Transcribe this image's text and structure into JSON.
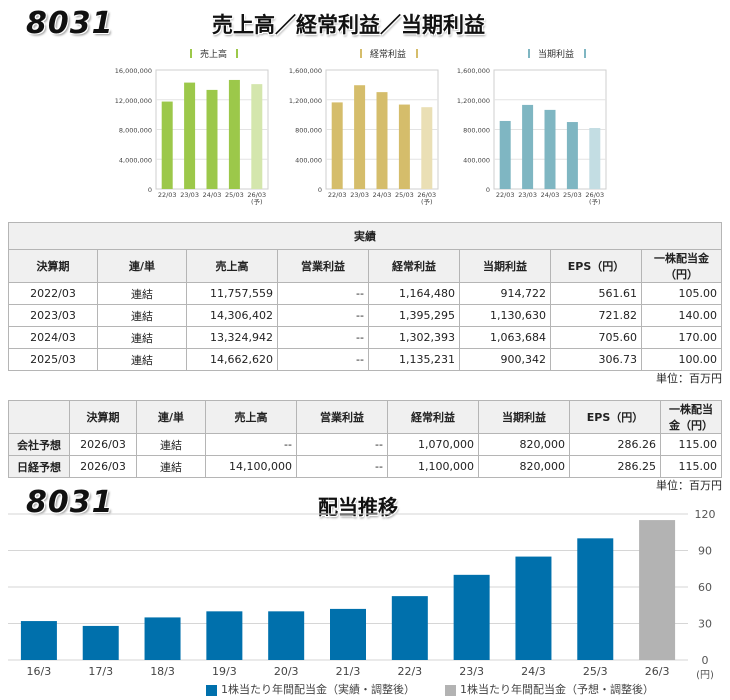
{
  "code": "8031",
  "headline": "売上高／経常利益／当期利益",
  "mini_charts": [
    {
      "legend": "売上高",
      "color": "#9cc84a",
      "forecast_color": "#d4e6ad",
      "y_ticks": [
        "16,000,000",
        "12,000,000",
        "8,000,000",
        "4,000,000",
        "0"
      ],
      "ylim": [
        0,
        16000000
      ],
      "categories": [
        "22/03",
        "23/03",
        "24/03",
        "25/03",
        "26/03"
      ],
      "forecast_note": "(予)",
      "values": [
        11757559,
        14306402,
        13324942,
        14662620,
        14100000
      ]
    },
    {
      "legend": "経常利益",
      "color": "#d5bd6b",
      "forecast_color": "#eadfb5",
      "y_ticks": [
        "1,600,000",
        "1,200,000",
        "800,000",
        "400,000",
        "0"
      ],
      "ylim": [
        0,
        1600000
      ],
      "categories": [
        "22/03",
        "23/03",
        "24/03",
        "25/03",
        "26/03"
      ],
      "forecast_note": "(予)",
      "values": [
        1164480,
        1395295,
        1302393,
        1135231,
        1100000
      ]
    },
    {
      "legend": "当期利益",
      "color": "#7fb6c2",
      "forecast_color": "#c3dde3",
      "y_ticks": [
        "1,600,000",
        "1,200,000",
        "800,000",
        "400,000",
        "0"
      ],
      "ylim": [
        0,
        1600000
      ],
      "categories": [
        "22/03",
        "23/03",
        "24/03",
        "25/03",
        "26/03"
      ],
      "forecast_note": "(予)",
      "values": [
        914722,
        1130630,
        1063684,
        900342,
        820000
      ]
    }
  ],
  "results_table": {
    "caption": "実績",
    "headers": [
      "決算期",
      "連/単",
      "売上高",
      "営業利益",
      "経常利益",
      "当期利益",
      "EPS（円）",
      "一株配当金（円）"
    ],
    "rows": [
      [
        "2022/03",
        "連結",
        "11,757,559",
        "--",
        "1,164,480",
        "914,722",
        "561.61",
        "105.00"
      ],
      [
        "2023/03",
        "連結",
        "14,306,402",
        "--",
        "1,395,295",
        "1,130,630",
        "721.82",
        "140.00"
      ],
      [
        "2024/03",
        "連結",
        "13,324,942",
        "--",
        "1,302,393",
        "1,063,684",
        "705.60",
        "170.00"
      ],
      [
        "2025/03",
        "連結",
        "14,662,620",
        "--",
        "1,135,231",
        "900,342",
        "306.73",
        "100.00"
      ]
    ],
    "unit": "単位：百万円"
  },
  "forecast_table": {
    "headers": [
      "",
      "決算期",
      "連/単",
      "売上高",
      "営業利益",
      "経常利益",
      "当期利益",
      "EPS（円）",
      "一株配当金（円）"
    ],
    "rows": [
      [
        "会社予想",
        "2026/03",
        "連結",
        "--",
        "--",
        "1,070,000",
        "820,000",
        "286.26",
        "115.00"
      ],
      [
        "日経予想",
        "2026/03",
        "連結",
        "14,100,000",
        "--",
        "1,100,000",
        "820,000",
        "286.25",
        "115.00"
      ]
    ],
    "unit": "単位：百万円"
  },
  "dividend": {
    "code": "8031",
    "title": "配当推移",
    "y_unit": "(円)",
    "legend_actual": "1株当たり年間配当金（実績・調整後）",
    "legend_forecast": "1株当たり年間配当金（予想・調整後）",
    "actual_color": "#0070ac",
    "forecast_color": "#b3b3b3"
  },
  "chart_data": [
    {
      "type": "bar",
      "series": [
        {
          "name": "売上高",
          "values": [
            11757559,
            14306402,
            13324942,
            14662620,
            14100000
          ]
        }
      ],
      "categories": [
        "22/03",
        "23/03",
        "24/03",
        "25/03",
        "26/03(予)"
      ],
      "ylim": [
        0,
        16000000
      ]
    },
    {
      "type": "bar",
      "series": [
        {
          "name": "経常利益",
          "values": [
            1164480,
            1395295,
            1302393,
            1135231,
            1100000
          ]
        }
      ],
      "categories": [
        "22/03",
        "23/03",
        "24/03",
        "25/03",
        "26/03(予)"
      ],
      "ylim": [
        0,
        1600000
      ]
    },
    {
      "type": "bar",
      "series": [
        {
          "name": "当期利益",
          "values": [
            914722,
            1130630,
            1063684,
            900342,
            820000
          ]
        }
      ],
      "categories": [
        "22/03",
        "23/03",
        "24/03",
        "25/03",
        "26/03(予)"
      ],
      "ylim": [
        0,
        1600000
      ]
    },
    {
      "type": "bar",
      "title": "配当推移",
      "ylabel": "(円)",
      "categories": [
        "16/3",
        "17/3",
        "18/3",
        "19/3",
        "20/3",
        "21/3",
        "22/3",
        "23/3",
        "24/3",
        "25/3",
        "26/3"
      ],
      "y_ticks": [
        "120",
        "90",
        "60",
        "30",
        "0"
      ],
      "ylim": [
        0,
        120
      ],
      "grid": true,
      "legend_placement": "bottom",
      "series": [
        {
          "name": "1株当たり年間配当金（実績・調整後）",
          "values": [
            32,
            28,
            35,
            40,
            40,
            42,
            52.5,
            70,
            85,
            100,
            null
          ]
        },
        {
          "name": "1株当たり年間配当金（予想・調整後）",
          "values": [
            null,
            null,
            null,
            null,
            null,
            null,
            null,
            null,
            null,
            null,
            115
          ]
        }
      ]
    }
  ]
}
